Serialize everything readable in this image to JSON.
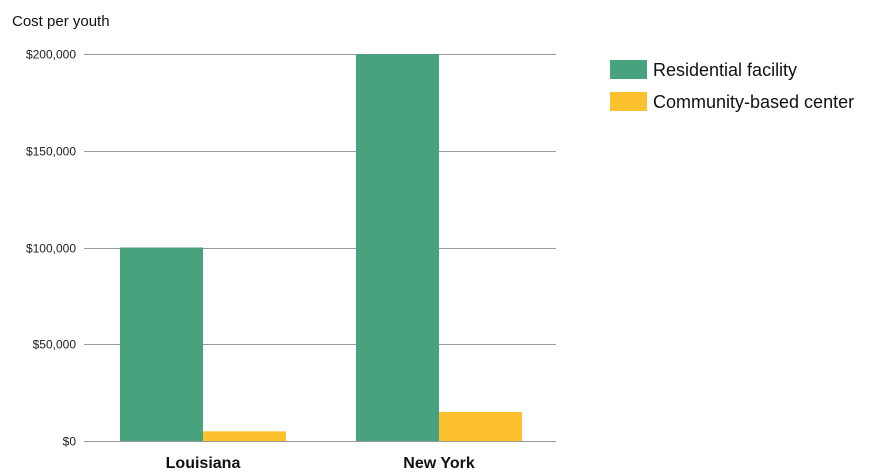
{
  "chart_data": {
    "type": "bar",
    "ylabel": "Cost per youth",
    "xlabel": "",
    "categories": [
      "Louisiana",
      "New York"
    ],
    "series": [
      {
        "name": "Residential facility",
        "values": [
          100000,
          200000
        ],
        "color": "#48a27e"
      },
      {
        "name": "Community-based center",
        "values": [
          5000,
          15000
        ],
        "color": "#fdc02f"
      }
    ],
    "ylim": [
      0,
      200000
    ],
    "yticks": [
      0,
      50000,
      100000,
      150000,
      200000
    ],
    "ytick_labels": [
      "$0",
      "$50,000",
      "$100,000",
      "$150,000",
      "$200,000"
    ],
    "grid": true,
    "legend_position": "right"
  }
}
